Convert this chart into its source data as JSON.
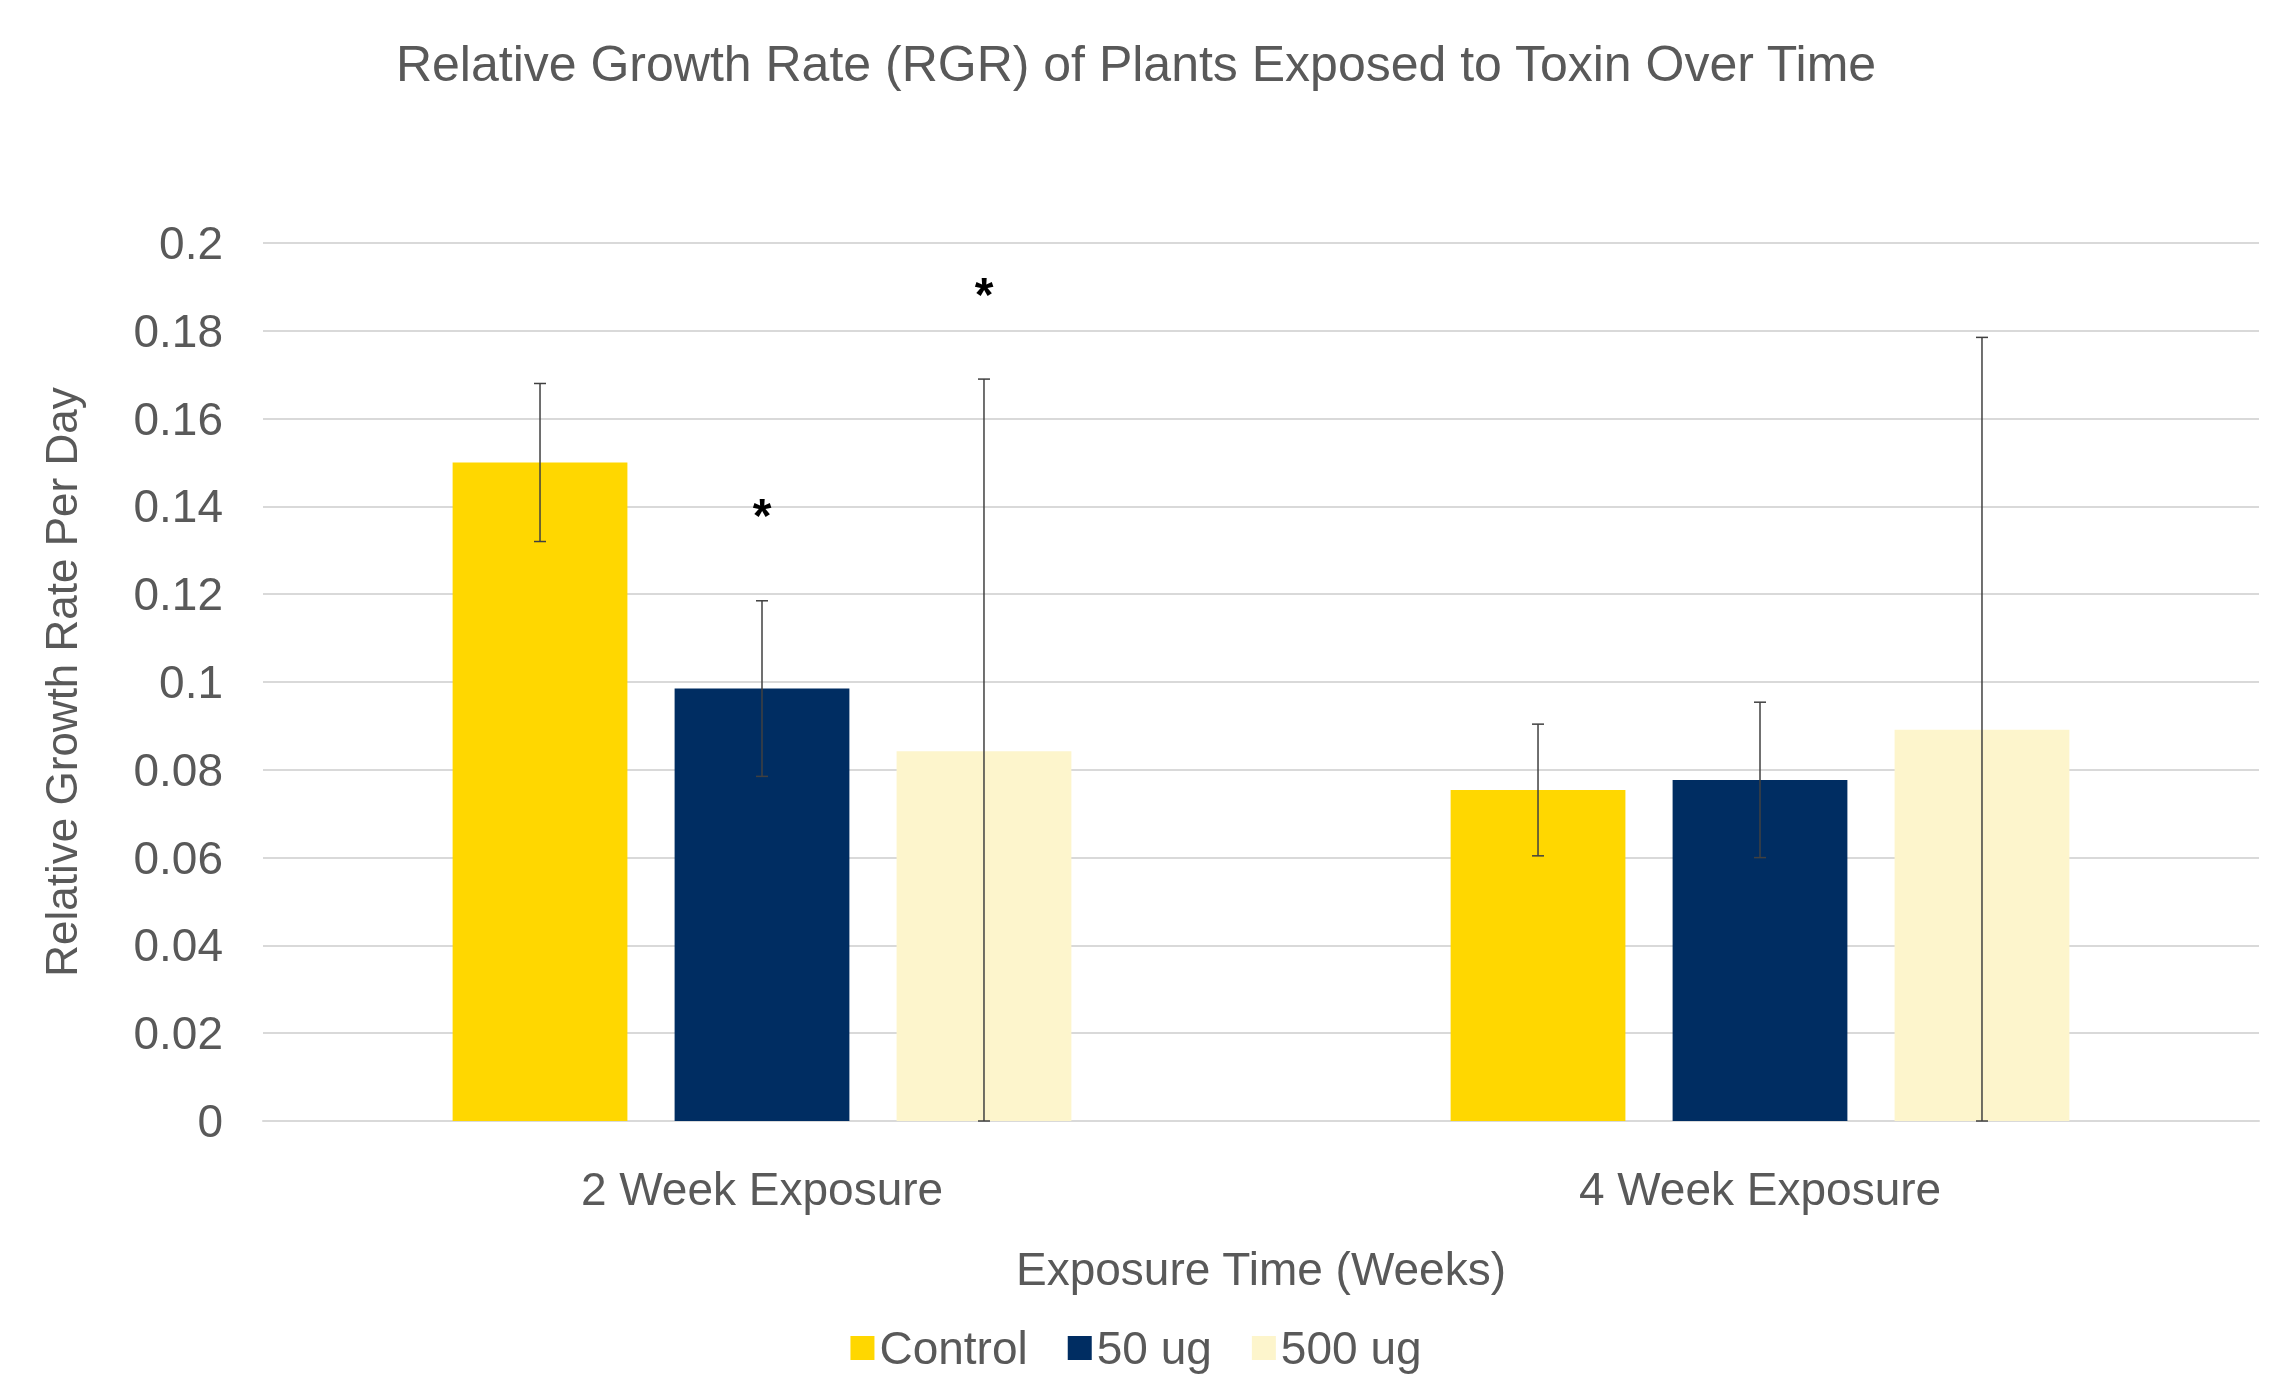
{
  "chart_data": {
    "type": "bar",
    "title": "Relative Growth Rate (RGR) of Plants Exposed to Toxin Over Time",
    "xlabel": "Exposure Time (Weeks)",
    "ylabel": "Relative Growth Rate Per Day",
    "categories": [
      "2 Week Exposure",
      "4 Week Exposure"
    ],
    "series": [
      {
        "name": "Control",
        "color": "#ffd700",
        "values": [
          0.15,
          0.0754
        ],
        "errors": [
          0.018,
          0.015
        ]
      },
      {
        "name": "50 ug",
        "color": "#002d62",
        "values": [
          0.0985,
          0.0777
        ],
        "errors": [
          0.02,
          0.0177
        ]
      },
      {
        "name": "500 ug",
        "color": "#fdf5cc",
        "values": [
          0.0842,
          0.0891
        ],
        "errors": [
          [
            0,
            0.169
          ],
          [
            0,
            0.1785
          ]
        ]
      }
    ],
    "ylim": [
      0,
      0.2
    ],
    "yticks": [
      0,
      0.02,
      0.04,
      0.06,
      0.08,
      0.1,
      0.12,
      0.14,
      0.16,
      0.18,
      0.2
    ],
    "grid": "y",
    "legend": "bottom",
    "annotations": [
      "*",
      "*"
    ]
  }
}
